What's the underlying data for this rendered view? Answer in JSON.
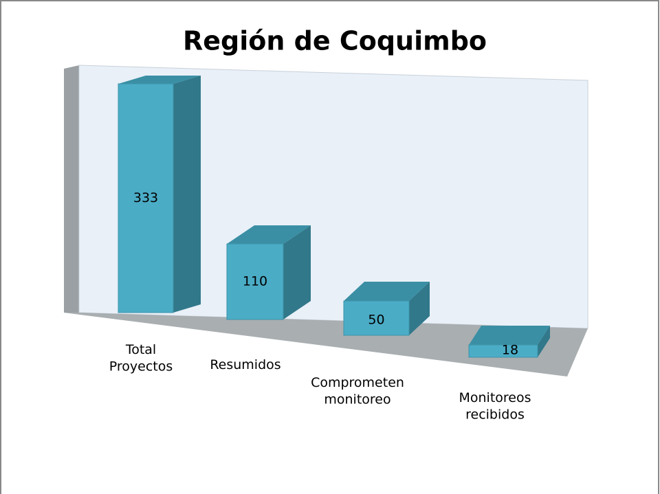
{
  "chart_data": {
    "type": "bar3d",
    "title": "Región de Coquimbo",
    "categories": [
      "Total Proyectos",
      "Resumidos",
      "Comprometen monitoreo",
      "Monitoreos recibidos"
    ],
    "values": [
      333,
      110,
      50,
      18
    ],
    "color": "#4bacc6"
  }
}
